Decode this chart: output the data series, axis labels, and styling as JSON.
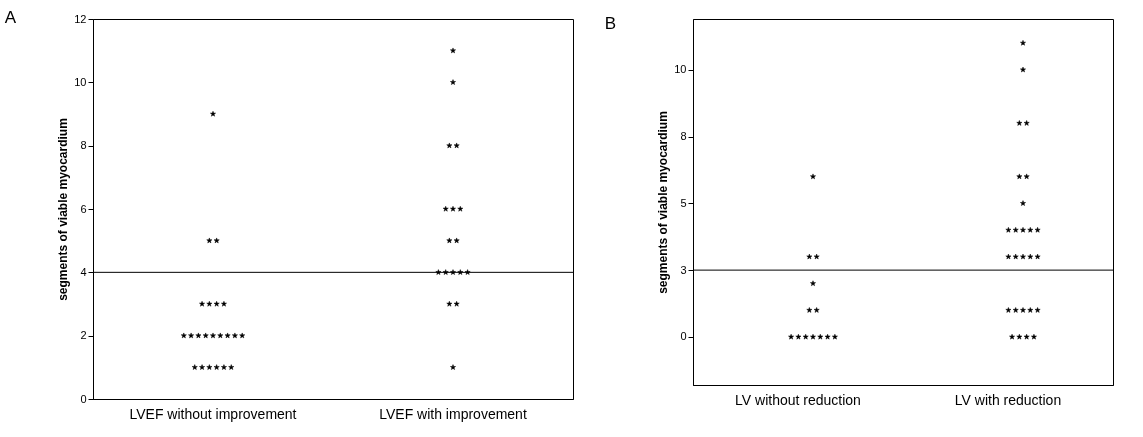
{
  "chart_data": [
    {
      "type": "scatter",
      "title": "A",
      "ylabel": "segments of viable myocardium",
      "categories": [
        "LVEF without improvement",
        "LVEF with improvement"
      ],
      "ylim": [
        0,
        12
      ],
      "yticks": [
        0,
        2,
        4,
        6,
        8,
        10,
        12
      ],
      "grid": false,
      "marker": "star",
      "ref_lines": [
        {
          "axis": "y",
          "value": 4
        }
      ],
      "series": [
        {
          "color": "#000000",
          "x": [
            "LVEF without improvement",
            "LVEF without improvement",
            "LVEF without improvement",
            "LVEF without improvement",
            "LVEF without improvement",
            "LVEF without improvement",
            "LVEF without improvement",
            "LVEF without improvement",
            "LVEF without improvement",
            "LVEF without improvement",
            "LVEF without improvement",
            "LVEF without improvement",
            "LVEF without improvement",
            "LVEF without improvement",
            "LVEF without improvement",
            "LVEF without improvement",
            "LVEF without improvement",
            "LVEF without improvement",
            "LVEF without improvement",
            "LVEF without improvement",
            "LVEF without improvement",
            "LVEF without improvement",
            "LVEF with improvement",
            "LVEF with improvement",
            "LVEF with improvement",
            "LVEF with improvement",
            "LVEF with improvement",
            "LVEF with improvement",
            "LVEF with improvement",
            "LVEF with improvement",
            "LVEF with improvement",
            "LVEF with improvement",
            "LVEF with improvement",
            "LVEF with improvement",
            "LVEF with improvement",
            "LVEF with improvement",
            "LVEF with improvement",
            "LVEF with improvement",
            "LVEF with improvement"
          ],
          "values": [
            9,
            5,
            5,
            3,
            3,
            3,
            3,
            2,
            2,
            2,
            2,
            2,
            2,
            2,
            2,
            2,
            1,
            1,
            1,
            1,
            1,
            1,
            11,
            10,
            8,
            8,
            6,
            6,
            6,
            5,
            5,
            4,
            4,
            4,
            4,
            4,
            3,
            3,
            1
          ]
        }
      ]
    },
    {
      "type": "scatter",
      "title": "B",
      "ylabel": "segments of viable myocardium",
      "categories": [
        "LV without reduction",
        "LV with reduction"
      ],
      "ylim": [
        -1.8,
        11.9
      ],
      "yticks": [
        0,
        {
          "value": 2.5,
          "label": "3"
        },
        5,
        {
          "value": 7.5,
          "label": "8"
        },
        10
      ],
      "grid": false,
      "marker": "star",
      "ref_lines": [
        {
          "axis": "y",
          "value": 2.5
        }
      ],
      "series": [
        {
          "color": "#000000",
          "x": [
            "LV without reduction",
            "LV without reduction",
            "LV without reduction",
            "LV without reduction",
            "LV without reduction",
            "LV without reduction",
            "LV without reduction",
            "LV without reduction",
            "LV without reduction",
            "LV without reduction",
            "LV without reduction",
            "LV without reduction",
            "LV without reduction",
            "LV with reduction",
            "LV with reduction",
            "LV with reduction",
            "LV with reduction",
            "LV with reduction",
            "LV with reduction",
            "LV with reduction",
            "LV with reduction",
            "LV with reduction",
            "LV with reduction",
            "LV with reduction",
            "LV with reduction",
            "LV with reduction",
            "LV with reduction",
            "LV with reduction",
            "LV with reduction",
            "LV with reduction",
            "LV with reduction",
            "LV with reduction",
            "LV with reduction",
            "LV with reduction",
            "LV with reduction",
            "LV with reduction",
            "LV with reduction",
            "LV with reduction",
            "LV with reduction"
          ],
          "values": [
            6,
            3,
            3,
            2,
            1,
            1,
            0,
            0,
            0,
            0,
            0,
            0,
            0,
            11,
            10,
            8,
            8,
            6,
            6,
            5,
            4,
            4,
            4,
            4,
            4,
            3,
            3,
            3,
            3,
            3,
            1,
            1,
            1,
            1,
            1,
            0,
            0,
            0,
            0
          ]
        }
      ]
    }
  ]
}
